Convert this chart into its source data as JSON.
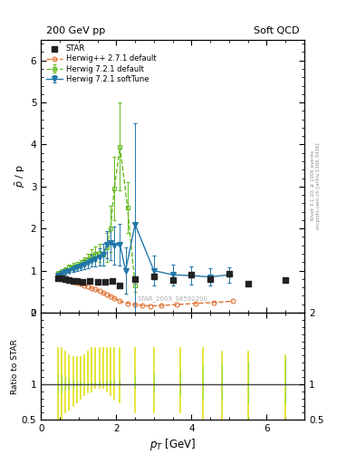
{
  "title_left": "200 GeV pp",
  "title_right": "Soft QCD",
  "ylabel_main": "$\\bar{p}$ / p",
  "ylabel_ratio": "Ratio to STAR",
  "xlabel": "$p_T$ [GeV]",
  "right_label": "mcplots.cern.ch [arXiv:1306.3436]",
  "right_label2": "Rivet 3.1.10, ≥ 100k events",
  "watermark": "STAR_2009_S6592200",
  "STAR_x": [
    0.45,
    0.55,
    0.65,
    0.75,
    0.85,
    0.95,
    1.1,
    1.3,
    1.5,
    1.7,
    1.9,
    2.1,
    2.5,
    3.0,
    3.5,
    4.0,
    4.5,
    5.0,
    5.5,
    6.5
  ],
  "STAR_y": [
    0.82,
    0.82,
    0.8,
    0.78,
    0.76,
    0.75,
    0.74,
    0.75,
    0.73,
    0.74,
    0.75,
    0.64,
    0.8,
    0.87,
    0.78,
    0.9,
    0.8,
    0.92,
    0.68,
    0.77
  ],
  "STAR_color": "#222222",
  "herwig_pp_x": [
    0.45,
    0.55,
    0.65,
    0.75,
    0.85,
    0.95,
    1.05,
    1.15,
    1.25,
    1.35,
    1.45,
    1.55,
    1.65,
    1.75,
    1.85,
    1.95,
    2.1,
    2.3,
    2.5,
    2.7,
    2.9,
    3.2,
    3.6,
    4.1,
    4.6,
    5.1
  ],
  "herwig_pp_y": [
    0.88,
    0.84,
    0.8,
    0.77,
    0.74,
    0.71,
    0.68,
    0.65,
    0.62,
    0.58,
    0.55,
    0.51,
    0.47,
    0.43,
    0.39,
    0.34,
    0.27,
    0.22,
    0.19,
    0.17,
    0.16,
    0.17,
    0.19,
    0.22,
    0.24,
    0.27
  ],
  "herwig_pp_color": "#e07030",
  "herwig721_x": [
    0.45,
    0.55,
    0.65,
    0.75,
    0.85,
    0.95,
    1.05,
    1.15,
    1.25,
    1.35,
    1.45,
    1.55,
    1.65,
    1.75,
    1.85,
    1.95,
    2.1,
    2.3,
    2.5
  ],
  "herwig721_y": [
    0.93,
    0.97,
    1.02,
    1.07,
    1.1,
    1.13,
    1.17,
    1.22,
    1.28,
    1.35,
    1.4,
    1.42,
    1.38,
    1.55,
    2.0,
    2.95,
    3.95,
    2.5,
    0.65
  ],
  "herwig721_yerr": [
    0.06,
    0.06,
    0.06,
    0.07,
    0.08,
    0.08,
    0.09,
    0.1,
    0.12,
    0.15,
    0.18,
    0.22,
    0.25,
    0.35,
    0.55,
    0.75,
    1.05,
    0.6,
    0.15
  ],
  "herwig721_color": "#66bb22",
  "herwig721st_x": [
    0.45,
    0.55,
    0.65,
    0.75,
    0.85,
    0.95,
    1.05,
    1.15,
    1.25,
    1.35,
    1.45,
    1.55,
    1.65,
    1.75,
    1.85,
    1.95,
    2.1,
    2.25,
    2.5,
    3.0,
    3.5,
    4.0,
    4.5,
    5.0
  ],
  "herwig721st_y": [
    0.88,
    0.92,
    0.96,
    1.0,
    1.04,
    1.07,
    1.1,
    1.14,
    1.18,
    1.23,
    1.27,
    1.32,
    1.38,
    1.62,
    1.65,
    1.6,
    1.62,
    1.0,
    2.1,
    1.0,
    0.9,
    0.88,
    0.85,
    0.9
  ],
  "herwig721st_yerr": [
    0.04,
    0.05,
    0.05,
    0.06,
    0.07,
    0.08,
    0.09,
    0.1,
    0.12,
    0.14,
    0.17,
    0.2,
    0.25,
    0.32,
    0.4,
    0.45,
    0.5,
    0.55,
    2.4,
    0.35,
    0.25,
    0.22,
    0.2,
    0.18
  ],
  "herwig721st_color": "#2277aa",
  "xlim": [
    0,
    7
  ],
  "ylim_main": [
    0,
    6.5
  ],
  "ylim_ratio": [
    0.5,
    2.0
  ],
  "ratio_lines_x": [
    0.45,
    0.55,
    0.65,
    0.75,
    0.85,
    0.95,
    1.05,
    1.15,
    1.25,
    1.35,
    1.45,
    1.55,
    1.65,
    1.75,
    1.85,
    1.95,
    2.1,
    2.5,
    3.0,
    3.7,
    4.3,
    4.8,
    5.5,
    6.5
  ],
  "ratio_lines_yellow_lo": [
    0.5,
    0.5,
    0.6,
    0.65,
    0.7,
    0.75,
    0.8,
    0.85,
    0.88,
    0.9,
    0.95,
    0.95,
    0.95,
    0.9,
    0.85,
    0.8,
    0.75,
    0.6,
    0.6,
    0.6,
    0.5,
    0.5,
    0.5,
    0.5
  ],
  "ratio_lines_yellow_hi": [
    1.5,
    1.5,
    1.45,
    1.4,
    1.38,
    1.38,
    1.38,
    1.4,
    1.45,
    1.5,
    1.5,
    1.5,
    1.5,
    1.5,
    1.5,
    1.5,
    1.5,
    1.5,
    1.5,
    1.5,
    1.5,
    1.45,
    1.45,
    1.4
  ],
  "ratio_lines_green_lo": [
    0.88,
    0.9,
    0.92,
    0.94,
    0.96,
    0.97,
    0.98,
    0.99,
    0.99,
    1.0,
    1.0,
    1.0,
    1.0,
    1.0,
    1.0,
    1.0,
    0.98,
    0.95,
    0.9,
    0.85,
    0.8,
    0.78,
    0.75,
    0.72
  ],
  "ratio_lines_green_hi": [
    1.12,
    1.12,
    1.1,
    1.08,
    1.06,
    1.05,
    1.04,
    1.03,
    1.02,
    1.02,
    1.02,
    1.02,
    1.02,
    1.05,
    1.05,
    1.05,
    1.08,
    1.12,
    1.15,
    1.2,
    1.25,
    1.28,
    1.32,
    1.38
  ]
}
